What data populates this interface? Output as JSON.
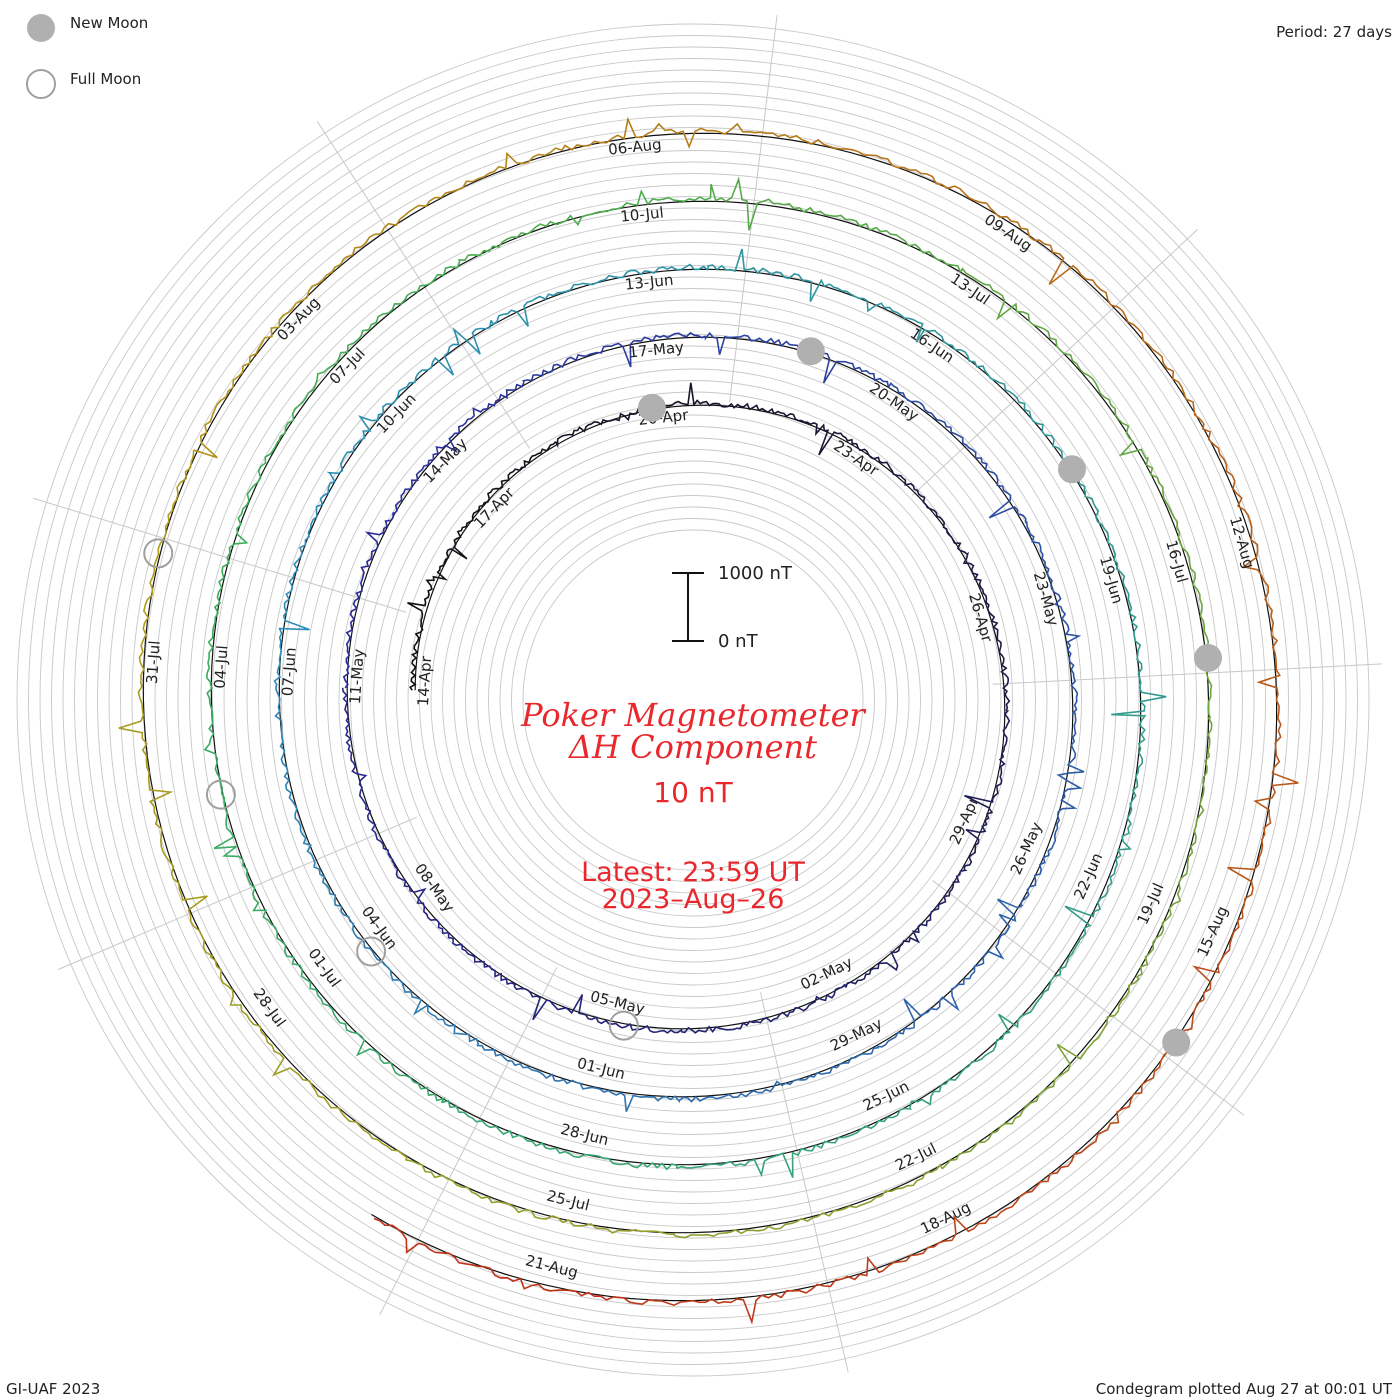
{
  "legend": {
    "new_moon_label": "New Moon",
    "full_moon_label": "Full Moon"
  },
  "period_label": "Period: 27 days",
  "footer_left": "GI-UAF 2023",
  "footer_right": "Condegram plotted Aug 27 at 00:01 UT",
  "title_line1": "Poker Magnetometer",
  "title_line2": "ΔH Component",
  "scale_text": "10 nT",
  "latest_line1": "Latest: 23:59 UT",
  "latest_line2": "2023–Aug–26",
  "scale_bar": {
    "top_label": "1000 nT",
    "bottom_label": "0 nT"
  },
  "chart_data": {
    "type": "line",
    "title": "Poker Magnetometer ΔH Component",
    "form": "spiral condegram",
    "period_days": 27,
    "start_date": "14-Apr",
    "end_date": "26-Aug",
    "scale_nT": 10,
    "scale_bar_nT": [
      0,
      1000
    ],
    "rotations": [
      {
        "color": "#111111",
        "labels": [
          "14-Apr",
          "17-Apr",
          "20-Apr",
          "23-Apr",
          "26-Apr",
          "29-Apr",
          "02-May",
          "05-May",
          "08-May"
        ]
      },
      {
        "color": "#2c2a9a",
        "labels": [
          "11-May",
          "14-May",
          "17-May",
          "20-May",
          "23-May",
          "26-May",
          "29-May",
          "01-Jun",
          "04-Jun"
        ]
      },
      {
        "color": "#2d8cb8",
        "labels": [
          "07-Jun",
          "10-Jun",
          "13-Jun",
          "16-Jun",
          "19-Jun",
          "22-Jun",
          "25-Jun",
          "28-Jun",
          "01-Jul"
        ]
      },
      {
        "color": "#3aae5a",
        "labels": [
          "04-Jul",
          "07-Jul",
          "10-Jul",
          "13-Jul",
          "16-Jul",
          "19-Jul",
          "22-Jul",
          "25-Jul",
          "28-Jul"
        ]
      },
      {
        "color": "#b29a1a",
        "labels": [
          "31-Jul",
          "03-Aug",
          "06-Aug",
          "09-Aug",
          "12-Aug",
          "15-Aug",
          "18-Aug",
          "21-Aug"
        ]
      }
    ],
    "new_moons": [
      "20-Apr",
      "19-May",
      "18-Jun",
      "17-Jul",
      "16-Aug"
    ],
    "full_moons": [
      "05-May",
      "04-Jun",
      "03-Jul",
      "01-Aug"
    ],
    "grid": true,
    "legend_position": "top-left",
    "colors": {
      "title": "#e8282c",
      "grid": "#bbbbbb",
      "moon_new": "#b0b0b0",
      "moon_full": "#a0a0a0"
    }
  }
}
